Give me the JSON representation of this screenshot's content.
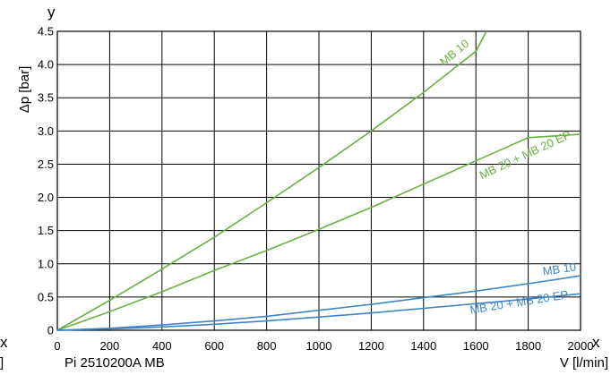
{
  "chart_data": {
    "type": "line",
    "title": "",
    "caption": "Pi 2510200A MB",
    "xlabel": "V [l/min]",
    "ylabel": "Δp [bar]",
    "x_axis_letter": "x",
    "y_axis_letter": "y",
    "left_edge_letter": "x",
    "left_edge_bracket": "]",
    "xlim": [
      0,
      2000
    ],
    "ylim": [
      0,
      4.5
    ],
    "grid": true,
    "x_ticks": [
      0,
      200,
      400,
      600,
      800,
      1000,
      1200,
      1400,
      1600,
      1800,
      2000
    ],
    "y_ticks": [
      0,
      0.5,
      1.0,
      1.5,
      2.0,
      2.5,
      3.0,
      3.5,
      4.0,
      4.5
    ],
    "x_tick_labels": [
      "0",
      "200",
      "400",
      "600",
      "800",
      "1000",
      "1200",
      "1400",
      "1600",
      "1800",
      "2000"
    ],
    "y_tick_labels": [
      "0",
      "0.5",
      "1.0",
      "1.5",
      "2.0",
      "2.5",
      "3.0",
      "3.5",
      "4.0",
      "4.5"
    ],
    "series": [
      {
        "name": "MB 10",
        "color": "#6ab045",
        "x": [
          0,
          200,
          400,
          600,
          800,
          1000,
          1200,
          1400,
          1600,
          1640
        ],
        "y": [
          0,
          0.45,
          0.92,
          1.4,
          1.92,
          2.45,
          3.0,
          3.58,
          4.2,
          4.5
        ]
      },
      {
        "name": "MB 20 + MB 20 EP",
        "color": "#6ab045",
        "x": [
          0,
          200,
          400,
          600,
          800,
          1000,
          1200,
          1400,
          1600,
          1800,
          2000
        ],
        "y": [
          0,
          0.28,
          0.58,
          0.9,
          1.2,
          1.52,
          1.85,
          2.2,
          2.55,
          2.9,
          2.95
        ]
      },
      {
        "name": "MB 10",
        "color": "#3d85c6",
        "x": [
          0,
          200,
          400,
          600,
          800,
          1000,
          1200,
          1400,
          1600,
          1800,
          2000
        ],
        "y": [
          0,
          0.03,
          0.08,
          0.14,
          0.21,
          0.3,
          0.39,
          0.49,
          0.59,
          0.7,
          0.82
        ]
      },
      {
        "name": "MB 20 + MB 20 EP",
        "color": "#3d85c6",
        "x": [
          0,
          200,
          400,
          600,
          800,
          1000,
          1200,
          1400,
          1600,
          1800,
          2000
        ],
        "y": [
          0,
          0.02,
          0.05,
          0.09,
          0.14,
          0.2,
          0.26,
          0.33,
          0.4,
          0.47,
          0.55
        ]
      }
    ]
  }
}
